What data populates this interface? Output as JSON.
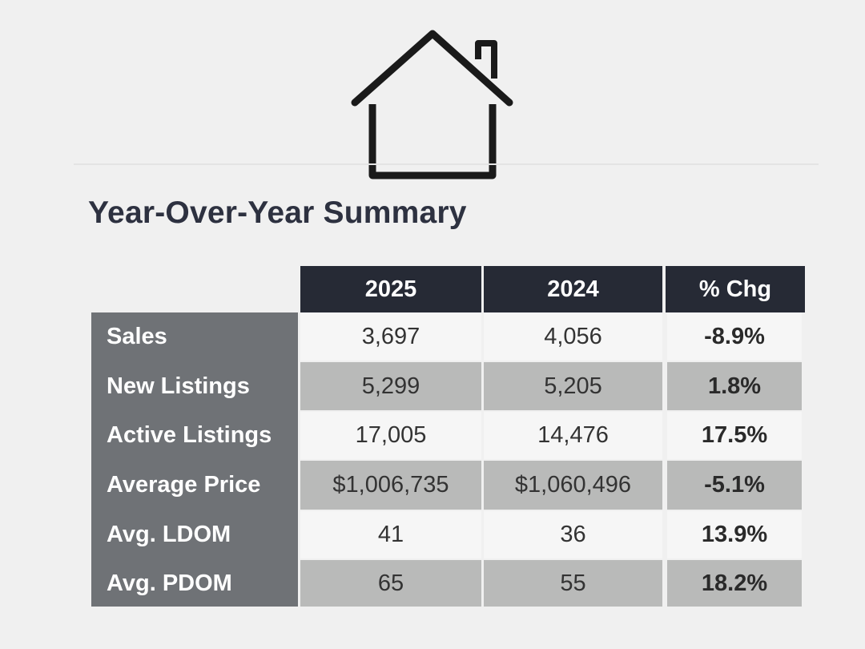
{
  "title": "Year-Over-Year Summary",
  "icon": "house-icon",
  "table": {
    "headers": [
      "2025",
      "2024",
      "% Chg"
    ],
    "rows": [
      {
        "label": "Sales",
        "y2025": "3,697",
        "y2024": "4,056",
        "chg": "-8.9%"
      },
      {
        "label": "New Listings",
        "y2025": "5,299",
        "y2024": "5,205",
        "chg": "1.8%"
      },
      {
        "label": "Active Listings",
        "y2025": "17,005",
        "y2024": "14,476",
        "chg": "17.5%"
      },
      {
        "label": "Average Price",
        "y2025": "$1,006,735",
        "y2024": "$1,060,496",
        "chg": "-5.1%"
      },
      {
        "label": "Avg. LDOM",
        "y2025": "41",
        "y2024": "36",
        "chg": "13.9%"
      },
      {
        "label": "Avg. PDOM",
        "y2025": "65",
        "y2024": "55",
        "chg": "18.2%"
      }
    ]
  },
  "colors": {
    "header": "#262a35",
    "label_col": "#6f7276",
    "row_light": "#f6f6f6",
    "row_dark": "#b9bab9",
    "title": "#2d3140"
  }
}
